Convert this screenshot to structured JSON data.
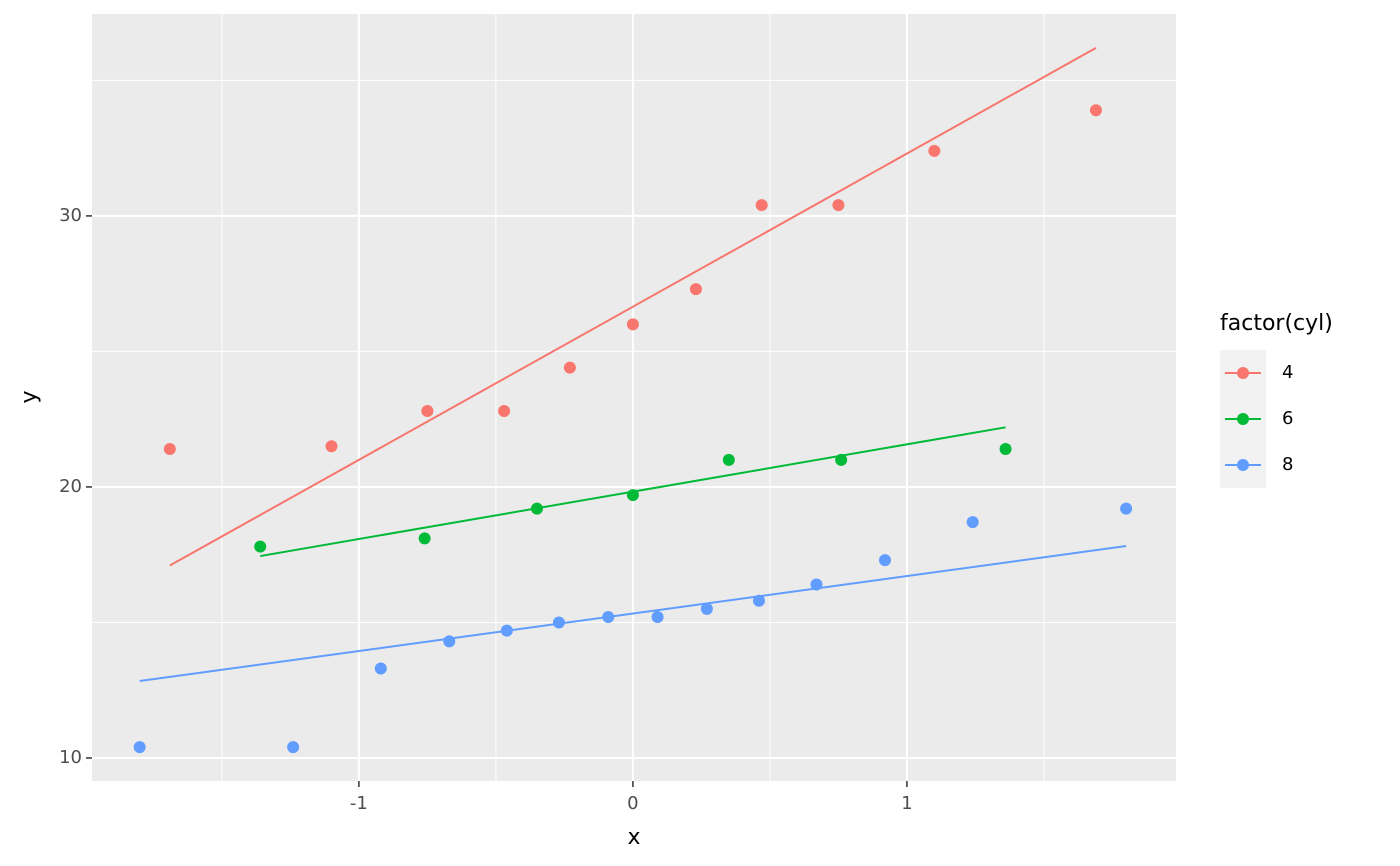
{
  "chart_data": {
    "type": "scatter",
    "x_label": "x",
    "y_label": "y",
    "legend_title": "factor(cyl)",
    "xlim": [
      -1.974,
      1.982
    ],
    "ylim": [
      9.15,
      37.45
    ],
    "xticks": [
      -1,
      0,
      1
    ],
    "yticks": [
      10,
      20,
      30
    ],
    "xminor": [
      -1.5,
      -0.5,
      0.5,
      1.5
    ],
    "yminor": [
      15,
      25,
      35
    ],
    "grid": true,
    "legend": "right",
    "series": [
      {
        "name": "4",
        "color": "#F8766D",
        "x": [
          -1.69,
          -1.1,
          -0.75,
          -0.47,
          -0.23,
          0,
          0.23,
          0.47,
          0.75,
          1.1,
          1.69
        ],
        "values": [
          21.4,
          21.5,
          22.8,
          22.8,
          24.4,
          26.0,
          27.3,
          30.4,
          30.4,
          32.4,
          33.9
        ],
        "line": {
          "x": [
            -1.69,
            1.69
          ],
          "values": [
            17.1,
            36.2
          ]
        }
      },
      {
        "name": "6",
        "color": "#00BA38",
        "x": [
          -1.36,
          -0.76,
          -0.35,
          0,
          0.35,
          0.76,
          1.36
        ],
        "values": [
          17.8,
          18.1,
          19.2,
          19.7,
          21.0,
          21.0,
          21.4
        ],
        "line": {
          "x": [
            -1.36,
            1.36
          ],
          "values": [
            17.45,
            22.2
          ]
        }
      },
      {
        "name": "8",
        "color": "#619CFF",
        "x": [
          -1.8,
          -1.24,
          -0.92,
          -0.67,
          -0.46,
          -0.27,
          -0.09,
          0.09,
          0.27,
          0.46,
          0.67,
          0.92,
          1.24,
          1.8
        ],
        "values": [
          10.4,
          10.4,
          13.3,
          14.3,
          14.7,
          15.0,
          15.2,
          15.2,
          15.5,
          15.8,
          16.4,
          17.3,
          18.7,
          19.2
        ],
        "line": {
          "x": [
            -1.8,
            1.8
          ],
          "values": [
            12.84,
            17.82
          ]
        }
      }
    ]
  }
}
